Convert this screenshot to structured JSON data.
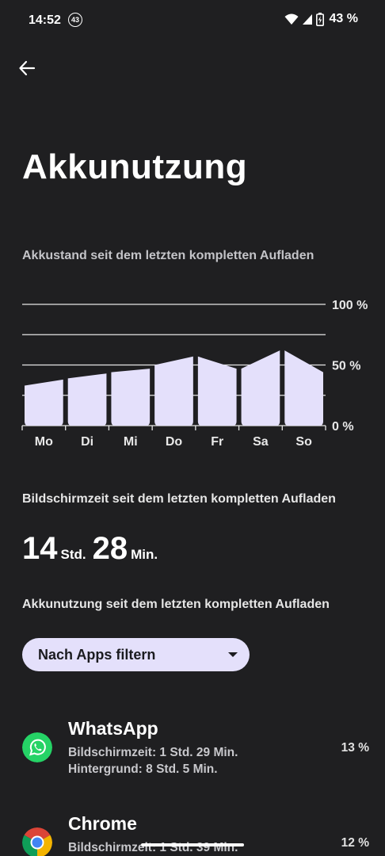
{
  "status_bar": {
    "time": "14:52",
    "notification_badge": "43",
    "battery_text": "43 %"
  },
  "header": {
    "title": "Akkunutzung"
  },
  "battery_level": {
    "label": "Akkustand seit dem letzten kompletten Aufladen"
  },
  "chart_data": {
    "type": "area",
    "categories": [
      "Mo",
      "Di",
      "Mi",
      "Do",
      "Fr",
      "Sa",
      "So"
    ],
    "y_ticks": [
      "100 %",
      "50 %",
      "0 %"
    ],
    "ylim": [
      0,
      100
    ],
    "grid": true,
    "series": [
      {
        "segments": [
          [
            33,
            38
          ],
          [
            39,
            43
          ],
          [
            44,
            47
          ],
          [
            50,
            57
          ],
          [
            57,
            47
          ],
          [
            47,
            62
          ],
          [
            62,
            44
          ]
        ]
      }
    ],
    "fill_color": "#e4e0fb",
    "grid_color": "#e6e6e6"
  },
  "screen_time": {
    "label": "Bildschirmzeit seit dem letzten kompletten Aufladen",
    "hours": "14",
    "hours_unit": "Std.",
    "minutes": "28",
    "minutes_unit": "Min."
  },
  "usage": {
    "label": "Akkunutzung seit dem letzten kompletten Aufladen",
    "filter_label": "Nach Apps filtern"
  },
  "apps": [
    {
      "name": "WhatsApp",
      "line1": "Bildschirmzeit: 1 Std. 29 Min.",
      "line2": "Hintergrund: 8 Std. 5 Min.",
      "percent": "13 %",
      "icon": "whatsapp-icon",
      "color": "#25d366"
    },
    {
      "name": "Chrome",
      "line1": "Bildschirmzeit: 1 Std. 39 Min.",
      "percent": "12 %",
      "icon": "chrome-icon"
    }
  ]
}
